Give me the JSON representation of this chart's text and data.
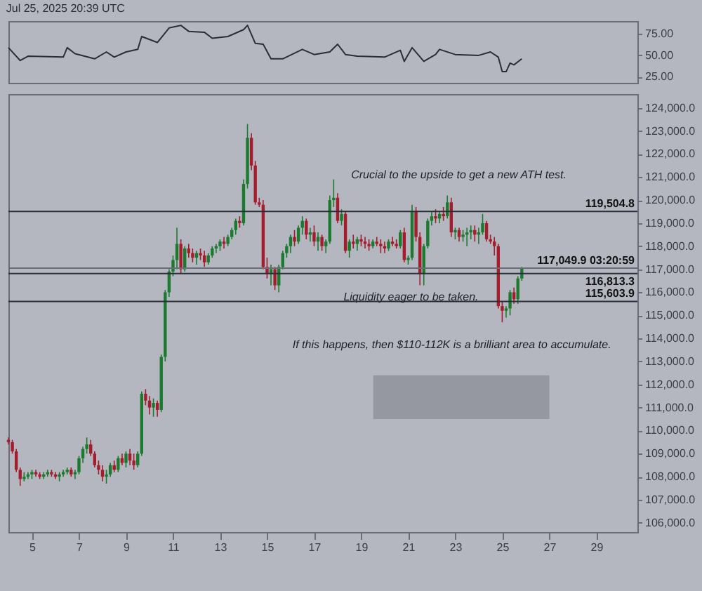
{
  "chart_data": [
    {
      "type": "line",
      "annotations": [
        "Jul 25, 2025 20:39 UTC"
      ],
      "x": [
        "2025-07-04T00:00",
        "2025-07-04T12:00",
        "2025-07-04T20:00",
        "2025-07-06T08:00",
        "2025-07-06T12:00",
        "2025-07-06T20:00",
        "2025-07-07T16:00",
        "2025-07-08T04:00",
        "2025-07-08T12:00",
        "2025-07-09T00:00",
        "2025-07-09T12:00",
        "2025-07-09T16:00",
        "2025-07-10T08:00",
        "2025-07-10T20:00",
        "2025-07-11T08:00",
        "2025-07-11T16:00",
        "2025-07-12T08:00",
        "2025-07-12T16:00",
        "2025-07-13T08:00",
        "2025-07-14T00:00",
        "2025-07-14T04:00",
        "2025-07-14T12:00",
        "2025-07-14T20:00",
        "2025-07-15T04:00",
        "2025-07-15T16:00",
        "2025-07-16T12:00",
        "2025-07-17T00:00",
        "2025-07-17T16:00",
        "2025-07-18T00:00",
        "2025-07-18T08:00",
        "2025-07-18T20:00",
        "2025-07-20T00:00",
        "2025-07-20T16:00",
        "2025-07-20T20:00",
        "2025-07-21T04:00",
        "2025-07-21T16:00",
        "2025-07-22T04:00",
        "2025-07-22T08:00",
        "2025-07-23T00:00",
        "2025-07-24T00:00",
        "2025-07-24T12:00",
        "2025-07-24T20:00",
        "2025-07-25T00:00",
        "2025-07-25T04:00",
        "2025-07-25T08:00",
        "2025-07-25T12:00",
        "2025-07-25T20:00"
      ],
      "series": [
        {
          "color": "#2a2e39",
          "values": [
            59,
            44,
            49,
            48,
            59,
            52,
            46,
            54,
            48,
            54,
            57,
            72,
            65,
            82,
            85,
            78,
            77,
            70,
            72,
            80,
            85,
            64,
            63,
            46,
            46,
            57,
            51,
            54,
            63,
            51,
            49,
            48,
            56,
            43,
            59,
            43,
            51,
            57,
            51,
            50,
            54,
            48,
            31,
            31,
            41,
            39,
            46
          ]
        }
      ],
      "xlim": [
        "2025-07-04T00:00",
        "2025-07-30T18:00"
      ],
      "ylim": [
        18,
        90
      ],
      "yticks": [
        {
          "value": 25,
          "label": "25.00"
        },
        {
          "value": 50,
          "label": "50.00"
        },
        {
          "value": 75,
          "label": "75.00"
        }
      ],
      "tick_labels": "y"
    },
    {
      "type": "candlestick",
      "x": [
        "2025-07-04T00:00",
        "2025-07-04T04:00",
        "2025-07-04T08:00",
        "2025-07-04T12:00",
        "2025-07-04T16:00",
        "2025-07-04T20:00",
        "2025-07-05T00:00",
        "2025-07-05T04:00",
        "2025-07-05T08:00",
        "2025-07-05T12:00",
        "2025-07-05T16:00",
        "2025-07-05T20:00",
        "2025-07-06T00:00",
        "2025-07-06T04:00",
        "2025-07-06T08:00",
        "2025-07-06T12:00",
        "2025-07-06T16:00",
        "2025-07-06T20:00",
        "2025-07-07T00:00",
        "2025-07-07T04:00",
        "2025-07-07T08:00",
        "2025-07-07T12:00",
        "2025-07-07T16:00",
        "2025-07-07T20:00",
        "2025-07-08T00:00",
        "2025-07-08T04:00",
        "2025-07-08T08:00",
        "2025-07-08T12:00",
        "2025-07-08T16:00",
        "2025-07-08T20:00",
        "2025-07-09T00:00",
        "2025-07-09T04:00",
        "2025-07-09T08:00",
        "2025-07-09T12:00",
        "2025-07-09T16:00",
        "2025-07-09T20:00",
        "2025-07-10T00:00",
        "2025-07-10T04:00",
        "2025-07-10T08:00",
        "2025-07-10T12:00",
        "2025-07-10T16:00",
        "2025-07-10T20:00",
        "2025-07-11T00:00",
        "2025-07-11T04:00",
        "2025-07-11T08:00",
        "2025-07-11T12:00",
        "2025-07-11T16:00",
        "2025-07-11T20:00",
        "2025-07-12T00:00",
        "2025-07-12T04:00",
        "2025-07-12T08:00",
        "2025-07-12T12:00",
        "2025-07-12T16:00",
        "2025-07-12T20:00",
        "2025-07-13T00:00",
        "2025-07-13T04:00",
        "2025-07-13T08:00",
        "2025-07-13T12:00",
        "2025-07-13T16:00",
        "2025-07-13T20:00",
        "2025-07-14T00:00",
        "2025-07-14T04:00",
        "2025-07-14T08:00",
        "2025-07-14T12:00",
        "2025-07-14T16:00",
        "2025-07-14T20:00",
        "2025-07-15T00:00",
        "2025-07-15T04:00",
        "2025-07-15T08:00",
        "2025-07-15T12:00",
        "2025-07-15T16:00",
        "2025-07-15T20:00",
        "2025-07-16T00:00",
        "2025-07-16T04:00",
        "2025-07-16T08:00",
        "2025-07-16T12:00",
        "2025-07-16T16:00",
        "2025-07-16T20:00",
        "2025-07-17T00:00",
        "2025-07-17T04:00",
        "2025-07-17T08:00",
        "2025-07-17T12:00",
        "2025-07-17T16:00",
        "2025-07-17T20:00",
        "2025-07-18T00:00",
        "2025-07-18T04:00",
        "2025-07-18T08:00",
        "2025-07-18T12:00",
        "2025-07-18T16:00",
        "2025-07-18T20:00",
        "2025-07-19T00:00",
        "2025-07-19T04:00",
        "2025-07-19T08:00",
        "2025-07-19T12:00",
        "2025-07-19T16:00",
        "2025-07-19T20:00",
        "2025-07-20T00:00",
        "2025-07-20T04:00",
        "2025-07-20T08:00",
        "2025-07-20T12:00",
        "2025-07-20T16:00",
        "2025-07-20T20:00",
        "2025-07-21T00:00",
        "2025-07-21T04:00",
        "2025-07-21T08:00",
        "2025-07-21T12:00",
        "2025-07-21T16:00",
        "2025-07-21T20:00",
        "2025-07-22T00:00",
        "2025-07-22T04:00",
        "2025-07-22T08:00",
        "2025-07-22T12:00",
        "2025-07-22T16:00",
        "2025-07-22T20:00",
        "2025-07-23T00:00",
        "2025-07-23T04:00",
        "2025-07-23T08:00",
        "2025-07-23T12:00",
        "2025-07-23T16:00",
        "2025-07-23T20:00",
        "2025-07-24T00:00",
        "2025-07-24T04:00",
        "2025-07-24T08:00",
        "2025-07-24T12:00",
        "2025-07-24T16:00",
        "2025-07-24T20:00",
        "2025-07-25T00:00",
        "2025-07-25T04:00",
        "2025-07-25T08:00",
        "2025-07-25T12:00",
        "2025-07-25T16:00",
        "2025-07-25T20:00"
      ],
      "ohlc": [
        [
          109600,
          109700,
          109400,
          109500
        ],
        [
          109500,
          109600,
          109000,
          109100
        ],
        [
          109100,
          109200,
          108200,
          108300
        ],
        [
          108300,
          108400,
          107600,
          107900
        ],
        [
          107900,
          108200,
          107800,
          108000
        ],
        [
          108000,
          108200,
          107900,
          108100
        ],
        [
          108100,
          108300,
          107900,
          108200
        ],
        [
          108200,
          108300,
          108000,
          108100
        ],
        [
          108100,
          108200,
          107900,
          108000
        ],
        [
          108000,
          108200,
          107900,
          108100
        ],
        [
          108100,
          108300,
          108000,
          108200
        ],
        [
          108200,
          108300,
          108000,
          108100
        ],
        [
          108100,
          108200,
          107900,
          108000
        ],
        [
          108000,
          108200,
          107800,
          108100
        ],
        [
          108100,
          108300,
          108000,
          108200
        ],
        [
          108200,
          108400,
          108100,
          108300
        ],
        [
          108300,
          108400,
          108000,
          108100
        ],
        [
          108100,
          108300,
          107900,
          108200
        ],
        [
          108200,
          108900,
          108100,
          108800
        ],
        [
          108800,
          109300,
          108600,
          109200
        ],
        [
          109200,
          109700,
          109000,
          109400
        ],
        [
          109400,
          109600,
          108900,
          109000
        ],
        [
          109000,
          109100,
          108400,
          108500
        ],
        [
          108500,
          108700,
          108100,
          108300
        ],
        [
          108300,
          108500,
          107800,
          108000
        ],
        [
          108000,
          108300,
          107700,
          108100
        ],
        [
          108100,
          108600,
          108000,
          108500
        ],
        [
          108500,
          108700,
          108200,
          108300
        ],
        [
          108300,
          108900,
          108200,
          108800
        ],
        [
          108800,
          109000,
          108500,
          108600
        ],
        [
          108600,
          109100,
          108400,
          109000
        ],
        [
          109000,
          109200,
          108500,
          108700
        ],
        [
          108700,
          109000,
          108300,
          108500
        ],
        [
          108500,
          109100,
          108400,
          109000
        ],
        [
          109000,
          111700,
          108900,
          111600
        ],
        [
          111600,
          111800,
          111100,
          111300
        ],
        [
          111300,
          111500,
          110700,
          111000
        ],
        [
          111000,
          111400,
          110600,
          111200
        ],
        [
          111200,
          111300,
          110600,
          110900
        ],
        [
          110900,
          113300,
          110800,
          113200
        ],
        [
          113200,
          116100,
          113000,
          116000
        ],
        [
          116000,
          117000,
          115800,
          116900
        ],
        [
          116900,
          117600,
          116700,
          117400
        ],
        [
          117400,
          118800,
          117000,
          118100
        ],
        [
          118100,
          118300,
          116800,
          117000
        ],
        [
          117000,
          118000,
          116900,
          117900
        ],
        [
          117900,
          118100,
          117500,
          117700
        ],
        [
          117700,
          117900,
          117300,
          117500
        ],
        [
          117500,
          117800,
          117200,
          117700
        ],
        [
          117700,
          117900,
          117400,
          117600
        ],
        [
          117600,
          117800,
          117100,
          117300
        ],
        [
          117300,
          117700,
          117200,
          117600
        ],
        [
          117600,
          118000,
          117500,
          117900
        ],
        [
          117900,
          118100,
          117700,
          118000
        ],
        [
          118000,
          118300,
          117800,
          118200
        ],
        [
          118200,
          118400,
          117900,
          118100
        ],
        [
          118100,
          118500,
          118000,
          118400
        ],
        [
          118400,
          118800,
          118300,
          118700
        ],
        [
          118700,
          119200,
          118500,
          119100
        ],
        [
          119100,
          119300,
          118800,
          119000
        ],
        [
          119000,
          120900,
          118900,
          120700
        ],
        [
          120700,
          123300,
          120500,
          122700
        ],
        [
          122700,
          122900,
          121300,
          121500
        ],
        [
          121500,
          121700,
          119800,
          119900
        ],
        [
          119900,
          120100,
          119700,
          119800
        ],
        [
          119800,
          120000,
          117000,
          117100
        ],
        [
          117100,
          117500,
          116600,
          116800
        ],
        [
          116800,
          117200,
          116300,
          117000
        ],
        [
          117000,
          117100,
          116100,
          116300
        ],
        [
          116300,
          117200,
          116000,
          117100
        ],
        [
          117100,
          117800,
          117000,
          117700
        ],
        [
          117700,
          118100,
          117500,
          118000
        ],
        [
          118000,
          118500,
          117700,
          118400
        ],
        [
          118400,
          118700,
          118000,
          118200
        ],
        [
          118200,
          118900,
          118100,
          118800
        ],
        [
          118800,
          119300,
          118500,
          119100
        ],
        [
          119100,
          119200,
          118300,
          118500
        ],
        [
          118500,
          118800,
          118200,
          118600
        ],
        [
          118600,
          118900,
          118000,
          118200
        ],
        [
          118200,
          118600,
          117800,
          118400
        ],
        [
          118400,
          118500,
          117800,
          118000
        ],
        [
          118000,
          118300,
          117700,
          118200
        ],
        [
          118200,
          120200,
          118100,
          120000
        ],
        [
          120000,
          120900,
          119700,
          120100
        ],
        [
          120100,
          120300,
          119000,
          119100
        ],
        [
          119100,
          119600,
          118900,
          119400
        ],
        [
          119400,
          119500,
          117700,
          117800
        ],
        [
          117800,
          118300,
          117500,
          118200
        ],
        [
          118200,
          118500,
          117900,
          118100
        ],
        [
          118100,
          118400,
          117800,
          118300
        ],
        [
          118300,
          118500,
          118000,
          118200
        ],
        [
          118200,
          118400,
          117900,
          118100
        ],
        [
          118100,
          118300,
          117800,
          118000
        ],
        [
          118000,
          118300,
          117900,
          118200
        ],
        [
          118200,
          118400,
          118000,
          118100
        ],
        [
          118100,
          118300,
          117700,
          118000
        ],
        [
          118000,
          118200,
          117700,
          117900
        ],
        [
          117900,
          118300,
          117800,
          118200
        ],
        [
          118200,
          118400,
          118000,
          118100
        ],
        [
          118100,
          118300,
          117900,
          118000
        ],
        [
          118000,
          118700,
          117900,
          118600
        ],
        [
          118600,
          118800,
          117300,
          117400
        ],
        [
          117400,
          117600,
          117200,
          117500
        ],
        [
          117500,
          119800,
          117400,
          119500
        ],
        [
          119500,
          119700,
          118200,
          118400
        ],
        [
          118400,
          118600,
          116300,
          116800
        ],
        [
          116800,
          118100,
          116300,
          118000
        ],
        [
          118000,
          119200,
          117900,
          119100
        ],
        [
          119100,
          119500,
          118900,
          119300
        ],
        [
          119300,
          119600,
          119000,
          119200
        ],
        [
          119200,
          119500,
          119000,
          119400
        ],
        [
          119400,
          119700,
          119100,
          119300
        ],
        [
          119300,
          120200,
          119200,
          119900
        ],
        [
          119900,
          120100,
          118400,
          118600
        ],
        [
          118600,
          118800,
          118300,
          118700
        ],
        [
          118700,
          118800,
          118200,
          118400
        ],
        [
          118400,
          118700,
          118200,
          118500
        ],
        [
          118500,
          118800,
          118000,
          118600
        ],
        [
          118600,
          118900,
          118300,
          118700
        ],
        [
          118700,
          118900,
          118200,
          118500
        ],
        [
          118500,
          118800,
          118100,
          118600
        ],
        [
          118600,
          119400,
          118500,
          119000
        ],
        [
          119000,
          119100,
          118200,
          118300
        ],
        [
          118300,
          118500,
          118100,
          118200
        ],
        [
          118200,
          118400,
          117600,
          118000
        ],
        [
          118000,
          118100,
          115300,
          115400
        ],
        [
          115400,
          115600,
          114700,
          115200
        ],
        [
          115200,
          115400,
          114900,
          115300
        ],
        [
          115300,
          116100,
          115000,
          116000
        ],
        [
          116000,
          116200,
          115500,
          115700
        ],
        [
          115700,
          116700,
          115500,
          116600
        ],
        [
          116600,
          117100,
          116500,
          117049.9
        ]
      ],
      "xlim": [
        "2025-07-04T00:00",
        "2025-07-30T18:00"
      ],
      "xticks": [
        {
          "value": "2025-07-05",
          "label": "5"
        },
        {
          "value": "2025-07-07",
          "label": "7"
        },
        {
          "value": "2025-07-09",
          "label": "9"
        },
        {
          "value": "2025-07-11",
          "label": "11"
        },
        {
          "value": "2025-07-13",
          "label": "13"
        },
        {
          "value": "2025-07-15",
          "label": "15"
        },
        {
          "value": "2025-07-17",
          "label": "17"
        },
        {
          "value": "2025-07-19",
          "label": "19"
        },
        {
          "value": "2025-07-21",
          "label": "21"
        },
        {
          "value": "2025-07-23",
          "label": "23"
        },
        {
          "value": "2025-07-25",
          "label": "25"
        },
        {
          "value": "2025-07-27",
          "label": "27"
        },
        {
          "value": "2025-07-29",
          "label": "29"
        }
      ],
      "ylim": [
        105600,
        124600
      ],
      "yticks": [
        {
          "value": 106000,
          "label": "106,000.0"
        },
        {
          "value": 107000,
          "label": "107,000.0"
        },
        {
          "value": 108000,
          "label": "108,000.0"
        },
        {
          "value": 109000,
          "label": "109,000.0"
        },
        {
          "value": 110000,
          "label": "110,000.0"
        },
        {
          "value": 111000,
          "label": "111,000.0"
        },
        {
          "value": 112000,
          "label": "112,000.0"
        },
        {
          "value": 113000,
          "label": "113,000.0"
        },
        {
          "value": 114000,
          "label": "114,000.0"
        },
        {
          "value": 115000,
          "label": "115,000.0"
        },
        {
          "value": 116000,
          "label": "116,000.0"
        },
        {
          "value": 117000,
          "label": "117,000.0"
        },
        {
          "value": 118000,
          "label": "118,000.0"
        },
        {
          "value": 119000,
          "label": "119,000.0"
        },
        {
          "value": 120000,
          "label": "120,000.0"
        },
        {
          "value": 121000,
          "label": "121,000.0"
        },
        {
          "value": 122000,
          "label": "122,000.0"
        },
        {
          "value": 123000,
          "label": "123,000.0"
        },
        {
          "value": 124000,
          "label": "124,000.0"
        }
      ],
      "ref_lines": [
        {
          "axis": "y",
          "value": 119504.8,
          "label": "119,504.8",
          "color": "#2a2e39",
          "line_style": "solid"
        },
        {
          "axis": "y",
          "value": 117049.9,
          "label": "117,049.9  03:20:59",
          "color": "#6a6d78",
          "line_style": "solid"
        },
        {
          "axis": "y",
          "value": 116813.3,
          "label": "116,813.3",
          "color": "#2a2e39",
          "line_style": "solid"
        },
        {
          "axis": "y",
          "value": 115603.9,
          "label": "115,603.9",
          "color": "#2a2e39",
          "line_style": "solid"
        }
      ],
      "bands": [
        {
          "axis": "y",
          "from": 110500,
          "to": 112400,
          "color": "#8e9098"
        }
      ],
      "annotations": [
        "Crucial to the upside to get a new ATH test.",
        "Liquidity eager to be taken.",
        "If this happens, then $110-112K is a brilliant area to accumulate."
      ]
    }
  ]
}
